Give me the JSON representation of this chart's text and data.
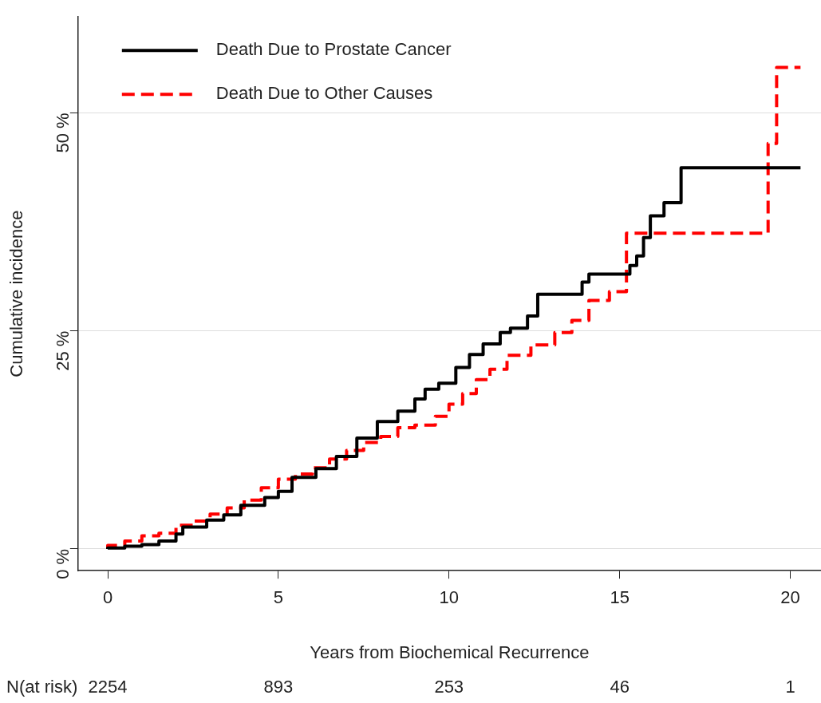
{
  "chart_data": {
    "type": "step",
    "xlabel": "Years from Biochemical Recurrence",
    "ylabel": "Cumulative incidence",
    "xlim": [
      -0.87,
      20.9
    ],
    "ylim": [
      -2.5,
      61
    ],
    "xticks": [
      0,
      5,
      10,
      15,
      20
    ],
    "yticks": [
      {
        "value": 0,
        "label": "0 %"
      },
      {
        "value": 25,
        "label": "25 %"
      },
      {
        "value": 50,
        "label": "50 %"
      }
    ],
    "grid": "y",
    "legend": "top left",
    "marker": "none",
    "series": [
      {
        "name": "Death Due to Prostate Cancer",
        "color": "#000000",
        "line_style": "solid",
        "x": [
          0,
          0.5,
          1.0,
          1.5,
          2.0,
          2.2,
          2.9,
          3.4,
          3.9,
          4.6,
          5.0,
          5.4,
          6.1,
          6.7,
          7.3,
          7.9,
          8.5,
          9.0,
          9.3,
          9.7,
          10.2,
          10.6,
          11.0,
          11.5,
          11.8,
          12.3,
          12.6,
          13.1,
          13.9,
          14.1,
          14.5,
          15.3,
          15.5,
          15.7,
          15.9,
          16.3,
          16.8,
          18.6,
          20.3
        ],
        "values": [
          0,
          0.1,
          0.3,
          0.5,
          0.9,
          1.7,
          2.5,
          3.3,
          3.9,
          5.0,
          5.9,
          6.6,
          8.2,
          9.2,
          10.6,
          12.7,
          14.6,
          15.8,
          17.2,
          18.3,
          19.0,
          20.8,
          22.3,
          23.5,
          24.8,
          25.3,
          26.7,
          29.2,
          29.2,
          30.6,
          31.5,
          31.5,
          32.5,
          33.6,
          35.7,
          38.2,
          39.7,
          43.7,
          43.7
        ]
      },
      {
        "name": "Death Due to Other Causes",
        "color": "#ff0000",
        "line_style": "dashed",
        "x": [
          0,
          0.5,
          1.0,
          1.5,
          2.0,
          2.5,
          3.0,
          3.5,
          4.0,
          4.5,
          5.0,
          5.5,
          6.0,
          6.5,
          7.0,
          7.5,
          8.0,
          8.5,
          9.0,
          9.6,
          10.0,
          10.4,
          10.8,
          11.2,
          11.7,
          12.4,
          13.1,
          13.6,
          14.1,
          14.7,
          15.2,
          19.35,
          19.6,
          20.3
        ],
        "values": [
          0,
          0.4,
          0.9,
          1.5,
          1.8,
          2.7,
          3.2,
          4.0,
          4.7,
          5.6,
          7.0,
          8.0,
          8.6,
          9.3,
          10.3,
          11.3,
          12.2,
          12.9,
          13.9,
          14.2,
          15.2,
          16.6,
          17.8,
          19.4,
          20.6,
          22.2,
          23.4,
          24.8,
          26.2,
          28.5,
          29.5,
          36.2,
          46.5,
          55.2
        ]
      }
    ],
    "annotations": [
      "N(at risk)",
      "2254",
      "893",
      "253",
      "46",
      "1"
    ]
  }
}
